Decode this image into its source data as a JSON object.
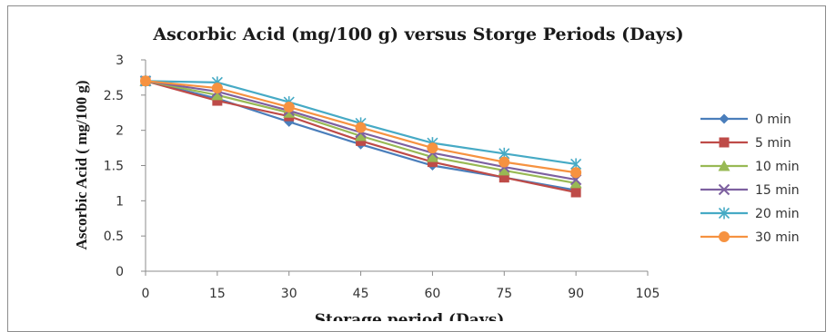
{
  "chart_data": {
    "type": "line",
    "title": "Ascorbic Acid (mg/100 g) versus Storge Periods (Days)",
    "xlabel": "Storage period (Days)",
    "ylabel": "Ascorbic Acid ( mg/100 g)",
    "xlim": [
      0,
      105
    ],
    "ylim": [
      0,
      3
    ],
    "xticks": [
      "0",
      "15",
      "30",
      "45",
      "60",
      "75",
      "90",
      "105"
    ],
    "yticks": [
      "0",
      "0.5",
      "1",
      "1.5",
      "2",
      "2.5",
      "3"
    ],
    "grid": false,
    "legend_position": "right",
    "x": [
      0,
      15,
      30,
      45,
      60,
      75,
      90
    ],
    "series": [
      {
        "name": "0 min",
        "color": "#4a7ebb",
        "marker": "diamond",
        "values": [
          2.7,
          2.45,
          2.12,
          1.8,
          1.5,
          1.33,
          1.15
        ]
      },
      {
        "name": "5 min",
        "color": "#be4b48",
        "marker": "square",
        "values": [
          2.7,
          2.42,
          2.2,
          1.85,
          1.55,
          1.33,
          1.12
        ]
      },
      {
        "name": "10 min",
        "color": "#98b954",
        "marker": "triangle",
        "values": [
          2.7,
          2.5,
          2.25,
          1.92,
          1.62,
          1.43,
          1.25
        ]
      },
      {
        "name": "15 min",
        "color": "#7d60a0",
        "marker": "x",
        "values": [
          2.7,
          2.55,
          2.28,
          1.97,
          1.68,
          1.48,
          1.3
        ]
      },
      {
        "name": "20 min",
        "color": "#46aac5",
        "marker": "star",
        "values": [
          2.7,
          2.68,
          2.4,
          2.1,
          1.82,
          1.67,
          1.52
        ]
      },
      {
        "name": "30 min",
        "color": "#f69240",
        "marker": "circle",
        "values": [
          2.7,
          2.6,
          2.33,
          2.04,
          1.75,
          1.55,
          1.4
        ]
      }
    ]
  }
}
